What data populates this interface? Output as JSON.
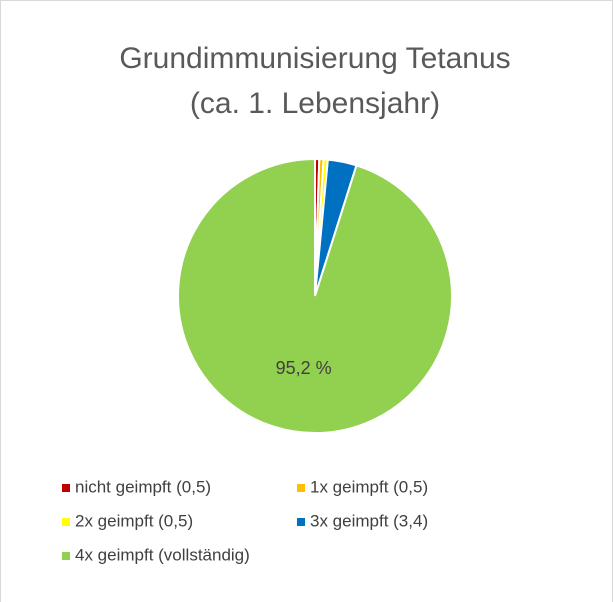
{
  "chart_data": {
    "type": "pie",
    "title": "Grundimmunisierung Tetanus",
    "subtitle": "(ca. 1. Lebensjahr)",
    "categories": [
      "nicht geimpft (0,5)",
      "1x geimpft (0,5)",
      "2x geimpft (0,5)",
      "3x geimpft (3,4)",
      "4x geimpft (vollständig)"
    ],
    "values": [
      0.5,
      0.5,
      0.5,
      3.4,
      95.2
    ],
    "value_labels": [
      null,
      null,
      null,
      null,
      "95,2 %"
    ],
    "colors": [
      "#c00000",
      "#ffc000",
      "#ffff00",
      "#0070c0",
      "#92d050"
    ],
    "legend": "bottom"
  }
}
